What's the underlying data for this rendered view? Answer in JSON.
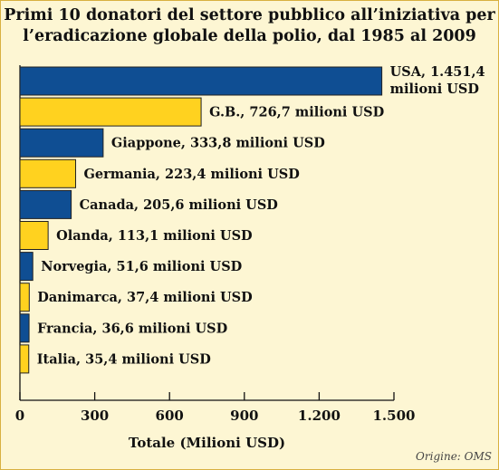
{
  "chart_data": {
    "type": "bar",
    "orientation": "horizontal",
    "title_line1": "Primi 10 donatori del settore pubblico all’iniziativa per",
    "title_line2": "l’eradicazione globale della polio, dal 1985 al 2009",
    "xlabel": "Totale (Milioni USD)",
    "xlim": [
      0,
      1500
    ],
    "ticks": [
      0,
      300,
      600,
      900,
      1200,
      1500
    ],
    "tick_labels": [
      "0",
      "300",
      "600",
      "900",
      "1.200",
      "1.500"
    ],
    "categories": [
      "USA",
      "G.B.",
      "Giappone",
      "Germania",
      "Canada",
      "Olanda",
      "Norvegia",
      "Danimarca",
      "Francia",
      "Italia"
    ],
    "values": [
      1451.4,
      726.7,
      333.8,
      223.4,
      205.6,
      113.1,
      51.6,
      37.4,
      36.6,
      35.4
    ],
    "labels": [
      [
        "USA, 1.451,4",
        "milioni USD"
      ],
      [
        "G.B., 726,7 milioni USD"
      ],
      [
        "Giappone, 333,8 milioni USD"
      ],
      [
        "Germania, 223,4 milioni USD"
      ],
      [
        "Canada, 205,6 milioni USD"
      ],
      [
        "Olanda, 113,1 milioni USD"
      ],
      [
        "Norvegia, 51,6 milioni USD"
      ],
      [
        "Danimarca, 37,4 milioni USD"
      ],
      [
        "Francia, 36,6 milioni USD"
      ],
      [
        "Italia, 35,4 milioni USD"
      ]
    ],
    "colors": [
      "#0f4e93",
      "#ffd21f"
    ],
    "grid": false,
    "legend": "none",
    "source": "Origine: OMS"
  }
}
